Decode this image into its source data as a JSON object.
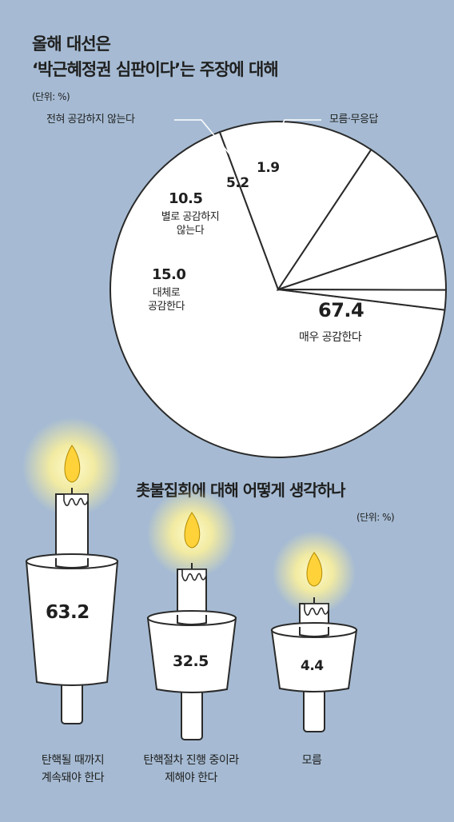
{
  "pie": {
    "title_line1": "올해 대선은",
    "title_line2": "‘박근혜정권 심판이다’는 주장에 대해",
    "unit": "(단위: %)"
  },
  "candles": {
    "title": "촛불집회에 대해 어떻게 생각하나",
    "unit": "(단위: %)"
  },
  "chart_data": [
    {
      "type": "pie",
      "title": "올해 대선은 ‘박근혜정권 심판이다’는 주장에 대해",
      "unit": "%",
      "slices": [
        {
          "label": "매우 공감한다",
          "value": 67.4
        },
        {
          "label": "대체로 공감한다",
          "value": 15.0
        },
        {
          "label": "별로 공감하지 않는다",
          "value": 10.5
        },
        {
          "label": "전혀 공감하지 않는다",
          "value": 5.2
        },
        {
          "label": "모름·무응답",
          "value": 1.9
        }
      ]
    },
    {
      "type": "bar",
      "title": "촛불집회에 대해 어떻게 생각하나",
      "unit": "%",
      "categories": [
        "탄핵될 때까지 계속돼야 한다",
        "탄핵절차 진행 중이라 자제해야 한다",
        "모름"
      ],
      "values": [
        63.2,
        32.5,
        4.4
      ]
    }
  ],
  "colors": {
    "background": "#a6bbd3",
    "pie_fill": "#ffffff",
    "stroke": "#2a2a2a",
    "flame": "#ffd23a",
    "glow": "#fff9b0"
  }
}
